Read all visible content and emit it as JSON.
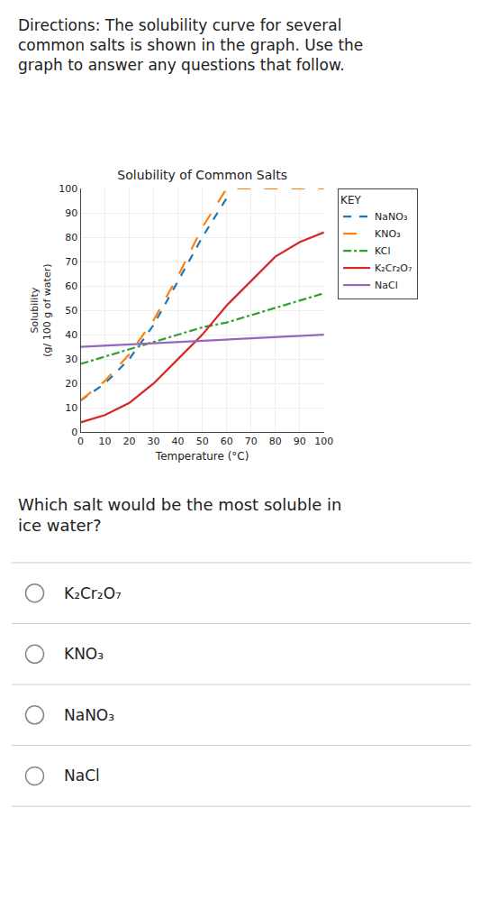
{
  "chart_data": {
    "type": "line",
    "title": "Solubility of Common Salts",
    "xlabel": "Temperature (°C)",
    "ylabel": "Solubility\n(g/ 100 g of water)",
    "xlim": [
      0,
      100
    ],
    "ylim": [
      0,
      100
    ],
    "xticks": [
      0,
      10,
      20,
      30,
      40,
      50,
      60,
      70,
      80,
      90,
      100
    ],
    "yticks": [
      0,
      10,
      20,
      30,
      40,
      50,
      60,
      70,
      80,
      90,
      100
    ],
    "grid": true,
    "legend": "right",
    "legend_title": "KEY",
    "series": [
      {
        "name": "NaNO₃",
        "line_style": "dashed",
        "x": [
          0,
          10,
          20,
          30,
          40,
          50,
          60
        ],
        "values": [
          13,
          20,
          30,
          44,
          62,
          80,
          96
        ]
      },
      {
        "name": "KNO₃",
        "line_style": "longdashed",
        "x": [
          0,
          10,
          20,
          30,
          40,
          50,
          60,
          70,
          80,
          90,
          100
        ],
        "values": [
          13,
          21,
          32,
          46,
          64,
          84,
          100,
          100,
          100,
          100,
          100
        ]
      },
      {
        "name": "KCl",
        "line_style": "dashdot",
        "x": [
          0,
          10,
          20,
          30,
          40,
          50,
          60,
          70,
          80,
          90,
          100
        ],
        "values": [
          28,
          31,
          34,
          37,
          40,
          43,
          45,
          48,
          51,
          54,
          57
        ]
      },
      {
        "name": "K₂Cr₂O₇",
        "line_style": "solid",
        "x": [
          0,
          10,
          20,
          30,
          40,
          50,
          60,
          70,
          80,
          90,
          100
        ],
        "values": [
          4,
          7,
          12,
          20,
          30,
          40,
          52,
          62,
          72,
          78,
          82
        ]
      },
      {
        "name": "NaCl",
        "line_style": "solid",
        "x": [
          0,
          10,
          20,
          30,
          40,
          50,
          60,
          70,
          80,
          90,
          100
        ],
        "values": [
          35,
          35.5,
          36,
          36.5,
          37,
          37.5,
          38,
          38.5,
          39,
          39.5,
          40
        ]
      }
    ],
    "annotations": [
      "Directions: The solubility curve for several common salts is shown in the graph. Use the graph to answer any questions that follow.",
      "Which salt would be the most soluble in ice water?",
      "K₂Cr₂O₇",
      "KNO₃",
      "NaNO₃",
      "NaCl"
    ]
  }
}
